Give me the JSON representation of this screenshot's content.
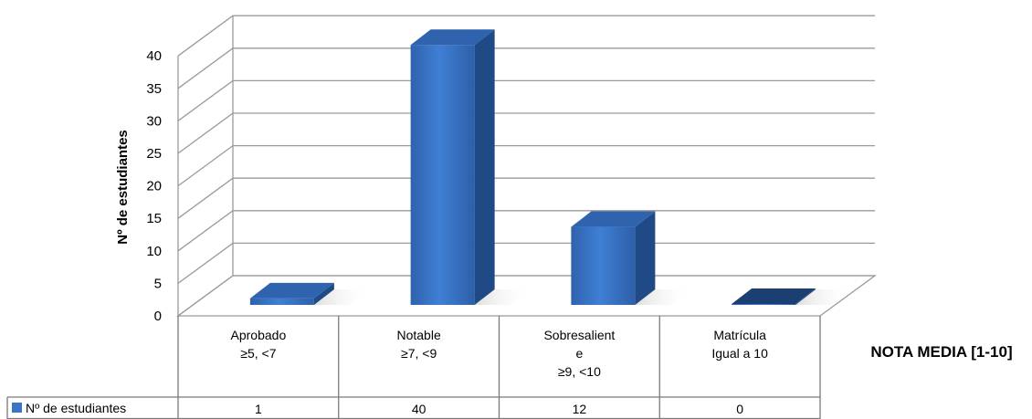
{
  "chart_data": {
    "type": "bar",
    "ylabel": "Nº de estudiantes",
    "xlabel": "NOTA MEDIA [1-10]",
    "categories": [
      [
        "Aprobado",
        "≥5, <7"
      ],
      [
        "Notable",
        "≥7, <9"
      ],
      [
        "Sobresalient",
        "e",
        "≥9, <10"
      ],
      [
        "Matrícula",
        "Igual a 10"
      ]
    ],
    "series": [
      {
        "name": "Nº de estudiantes",
        "values": [
          1,
          40,
          12,
          0
        ],
        "labels": [
          "1",
          "40",
          "12",
          "0"
        ]
      }
    ],
    "yticks": [
      "0",
      "5",
      "10",
      "15",
      "20",
      "25",
      "30",
      "35",
      "40"
    ],
    "ylim": [
      0,
      40
    ],
    "grid": true,
    "legend": "data-table-left",
    "colors": {
      "bar_front": "#3b78cc",
      "bar_side": "#1f4a85",
      "bar_top": "#2f63ad",
      "grid": "#9a9a9a",
      "legend_key": "#3a74c4"
    }
  }
}
